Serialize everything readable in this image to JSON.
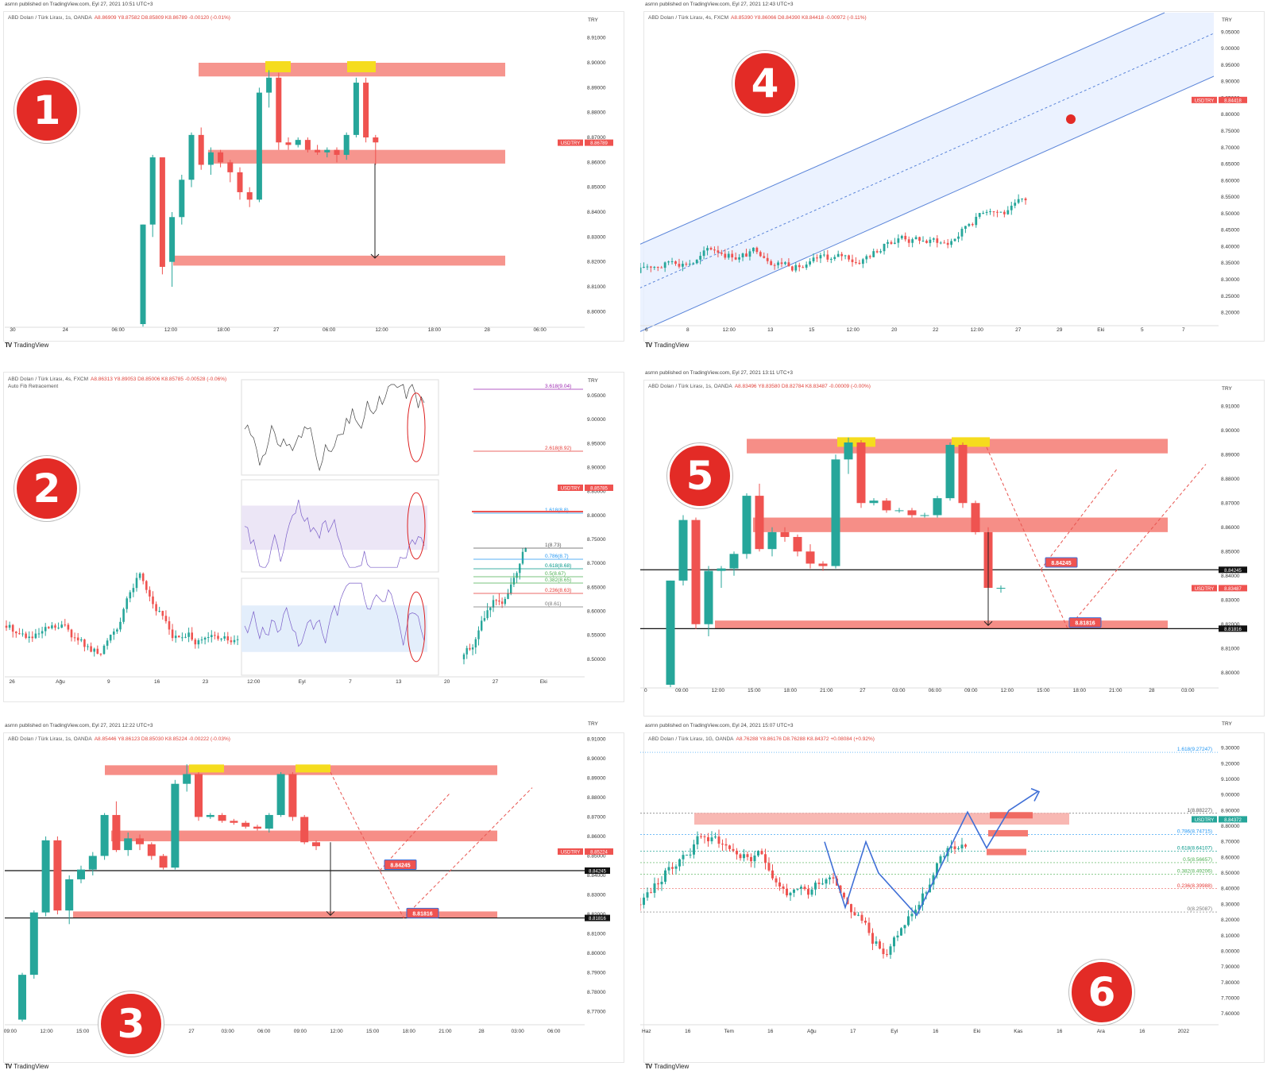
{
  "watermark": "TradingView",
  "panels": [
    {
      "number": "1",
      "published": "asrnn published on TradingView.com, Eyl 27, 2021 10:51 UTC+3",
      "symbol": "ABD Doları / Türk Lirası, 1s, OANDA",
      "ohlc": "A8.86909 Y8.87582 D8.85809 K8.86789 -0.00120 (-0.01%)",
      "currency": "TRY",
      "price_tag": {
        "symbol": "USDTRY",
        "value": "8.86789"
      }
    },
    {
      "number": "4",
      "published": "asrnn published on TradingView.com, Eyl 27, 2021 12:43 UTC+3",
      "symbol": "ABD Doları / Türk Lirası, 4s, FXCM",
      "ohlc": "A8.85390 Y8.86066 D8.84390 K8.84418 -0.00972 (-0.11%)",
      "currency": "TRY",
      "price_tag": {
        "symbol": "USDTRY",
        "value": "8.84418"
      }
    },
    {
      "number": "2",
      "published": "",
      "symbol": "ABD Doları / Türk Lirası, 4s, FXCM",
      "ohlc": "A8.86313 Y8.89053 D8.85006 K8.85785 -0.00528 (-0.06%)",
      "subtitle": "Auto Fib Retracement",
      "currency": "TRY",
      "price_tag": {
        "symbol": "USDTRY",
        "value": "8.85785"
      },
      "fib_levels": [
        "3.618(9.04)",
        "2.618(8.92)",
        "1.618(8.8)",
        "1(8.73)",
        "0.786(8.7)",
        "0.618(8.68)",
        "0.5(8.67)",
        "0.382(8.65)",
        "0.236(8.63)",
        "0(8.61)"
      ]
    },
    {
      "number": "5",
      "published": "asrnn published on TradingView.com, Eyl 27, 2021 13:11 UTC+3",
      "symbol": "ABD Doları / Türk Lirası, 1s, OANDA",
      "ohlc": "A8.83496 Y8.83580 D8.82784 K8.83487 -0.00009 (-0.00%)",
      "currency": "TRY",
      "price_tag": {
        "symbol": "USDTRY",
        "value": "8.83487"
      },
      "level_tags": [
        "8.84245",
        "8.81816"
      ]
    },
    {
      "number": "3",
      "published": "asrnn published on TradingView.com, Eyl 27, 2021 12:22 UTC+3",
      "symbol": "ABD Doları / Türk Lirası, 1s, OANDA",
      "ohlc": "A8.85446 Y8.86123 D8.85030 K8.85224 -0.00222 (-0.03%)",
      "currency": "TRY",
      "price_tag": {
        "symbol": "USDTRY",
        "value": "8.85224"
      },
      "level_tags": [
        "8.84245",
        "8.81816"
      ]
    },
    {
      "number": "6",
      "published": "asrnn published on TradingView.com, Eyl 24, 2021 15:07 UTC+3",
      "symbol": "ABD Doları / Türk Lirası, 1G, OANDA",
      "ohlc": "A8.76288 Y8.86176 D8.76288 K8.84372 +0.08084 (+0.92%)",
      "currency": "TRY",
      "price_tag": {
        "symbol": "USDTRY",
        "value": "8.84372"
      },
      "fib_levels": [
        "1.618(9.27247)",
        "1(8.88227)",
        "0.786(8.74715)",
        "0.618(8.64107)",
        "0.5(8.56657)",
        "0.382(8.49206)",
        "0.236(8.39988)",
        "0(8.25087)"
      ]
    }
  ],
  "chart_data": [
    {
      "type": "candlestick",
      "panel": "1",
      "x_ticks": [
        "30",
        "24",
        "06:00",
        "12:00",
        "18:00",
        "27",
        "06:00",
        "12:00",
        "18:00",
        "28",
        "06:00"
      ],
      "y_ticks": [
        "8.91000",
        "8.90000",
        "8.89000",
        "8.88000",
        "8.87000",
        "8.86000",
        "8.85000",
        "8.84000",
        "8.83000",
        "8.82000",
        "8.81000",
        "8.80000"
      ],
      "ylim": [
        8.795,
        8.915
      ],
      "zones": [
        [
          8.8945,
          8.9
        ],
        [
          8.8595,
          8.865
        ],
        [
          8.8185,
          8.8225
        ]
      ],
      "ohlc": [
        [
          8.795,
          8.835,
          8.794,
          8.835
        ],
        [
          8.835,
          8.863,
          8.83,
          8.862
        ],
        [
          8.862,
          8.861,
          8.815,
          8.818
        ],
        [
          8.82,
          8.84,
          8.81,
          8.838
        ],
        [
          8.838,
          8.855,
          8.835,
          8.853
        ],
        [
          8.853,
          8.872,
          8.85,
          8.871
        ],
        [
          8.871,
          8.874,
          8.857,
          8.859
        ],
        [
          8.859,
          8.866,
          8.855,
          8.864
        ],
        [
          8.864,
          8.865,
          8.858,
          8.86
        ],
        [
          8.86,
          8.861,
          8.852,
          8.856
        ],
        [
          8.856,
          8.858,
          8.845,
          8.848
        ],
        [
          8.848,
          8.85,
          8.842,
          8.845
        ],
        [
          8.845,
          8.89,
          8.844,
          8.888
        ],
        [
          8.888,
          8.897,
          8.882,
          8.894
        ],
        [
          8.894,
          8.896,
          8.865,
          8.868
        ],
        [
          8.868,
          8.87,
          8.865,
          8.867
        ],
        [
          8.867,
          8.87,
          8.866,
          8.869
        ],
        [
          8.869,
          8.87,
          8.864,
          8.865
        ],
        [
          8.865,
          8.867,
          8.863,
          8.864
        ],
        [
          8.864,
          8.866,
          8.862,
          8.865
        ],
        [
          8.865,
          8.866,
          8.86,
          8.863
        ],
        [
          8.863,
          8.872,
          8.861,
          8.871
        ],
        [
          8.871,
          8.894,
          8.87,
          8.892
        ],
        [
          8.892,
          8.894,
          8.868,
          8.87
        ],
        [
          8.87,
          8.871,
          8.859,
          8.868
        ]
      ]
    },
    {
      "type": "candlestick",
      "panel": "4",
      "x_ticks": [
        "6",
        "8",
        "12:00",
        "13",
        "15",
        "12:00",
        "20",
        "22",
        "12:00",
        "27",
        "29",
        "Eki",
        "5",
        "7"
      ],
      "y_ticks": [
        "9.05000",
        "9.00000",
        "8.95000",
        "8.90000",
        "8.85000",
        "8.80000",
        "8.75000",
        "8.70000",
        "8.65000",
        "8.60000",
        "8.55000",
        "8.50000",
        "8.45000",
        "8.40000",
        "8.35000",
        "8.30000",
        "8.25000",
        "8.20000"
      ],
      "ylim": [
        8.17,
        9.07
      ]
    },
    {
      "type": "candlestick",
      "panel": "2",
      "x_ticks": [
        "26",
        "Ağu",
        "9",
        "16",
        "23",
        "12:00",
        "Eyl",
        "7",
        "13",
        "20",
        "27",
        "Eki"
      ],
      "y_ticks": [
        "9.05000",
        "9.00000",
        "8.95000",
        "8.90000",
        "8.85000",
        "8.80000",
        "8.75000",
        "8.70000",
        "8.65000",
        "8.60000",
        "8.55000",
        "8.50000"
      ],
      "ylim": [
        8.47,
        9.07
      ]
    },
    {
      "type": "candlestick",
      "panel": "5",
      "x_ticks": [
        "0",
        "09:00",
        "12:00",
        "15:00",
        "18:00",
        "21:00",
        "27",
        "03:00",
        "06:00",
        "09:00",
        "12:00",
        "15:00",
        "18:00",
        "21:00",
        "28",
        "03:00"
      ],
      "y_ticks": [
        "8.91000",
        "8.90000",
        "8.89000",
        "8.88000",
        "8.87000",
        "8.86000",
        "8.85000",
        "8.84000",
        "8.83000",
        "8.82000",
        "8.81000",
        "8.80000"
      ],
      "ylim": [
        8.795,
        8.915
      ],
      "levels": [
        8.84245,
        8.81816
      ],
      "ohlc": [
        [
          8.795,
          8.838,
          8.794,
          8.838
        ],
        [
          8.838,
          8.865,
          8.836,
          8.863
        ],
        [
          8.863,
          8.864,
          8.818,
          8.82
        ],
        [
          8.82,
          8.844,
          8.815,
          8.842
        ],
        [
          8.842,
          8.844,
          8.835,
          8.843
        ],
        [
          8.843,
          8.85,
          8.84,
          8.849
        ],
        [
          8.849,
          8.874,
          8.847,
          8.873
        ],
        [
          8.873,
          8.878,
          8.85,
          8.851
        ],
        [
          8.851,
          8.86,
          8.848,
          8.858
        ],
        [
          8.858,
          8.86,
          8.854,
          8.856
        ],
        [
          8.856,
          8.857,
          8.848,
          8.85
        ],
        [
          8.85,
          8.853,
          8.843,
          8.845
        ],
        [
          8.845,
          8.846,
          8.842,
          8.844
        ],
        [
          8.844,
          8.89,
          8.843,
          8.888
        ],
        [
          8.888,
          8.897,
          8.882,
          8.895
        ],
        [
          8.895,
          8.896,
          8.868,
          8.87
        ],
        [
          8.87,
          8.872,
          8.869,
          8.871
        ],
        [
          8.871,
          8.872,
          8.866,
          8.867
        ],
        [
          8.867,
          8.868,
          8.866,
          8.867
        ],
        [
          8.867,
          8.868,
          8.864,
          8.865
        ],
        [
          8.865,
          8.866,
          8.864,
          8.865
        ],
        [
          8.865,
          8.873,
          8.864,
          8.872
        ],
        [
          8.872,
          8.895,
          8.871,
          8.894
        ],
        [
          8.894,
          8.895,
          8.868,
          8.87
        ],
        [
          8.87,
          8.871,
          8.857,
          8.858
        ],
        [
          8.858,
          8.86,
          8.83,
          8.835
        ],
        [
          8.835,
          8.836,
          8.833,
          8.835
        ]
      ]
    },
    {
      "type": "candlestick",
      "panel": "3",
      "x_ticks": [
        "09:00",
        "12:00",
        "15:00",
        "18:00",
        "21:00",
        "27",
        "03:00",
        "06:00",
        "09:00",
        "12:00",
        "15:00",
        "18:00",
        "21:00",
        "28",
        "03:00",
        "06:00"
      ],
      "y_ticks": [
        "8.91000",
        "8.90000",
        "8.89000",
        "8.88000",
        "8.87000",
        "8.86000",
        "8.85000",
        "8.84000",
        "8.83000",
        "8.82000",
        "8.81000",
        "8.80000",
        "8.79000",
        "8.78000",
        "8.77000"
      ],
      "ylim": [
        8.765,
        8.915
      ],
      "levels": [
        8.84245,
        8.81816
      ],
      "ohlc": [
        [
          8.766,
          8.79,
          8.765,
          8.789
        ],
        [
          8.789,
          8.822,
          8.787,
          8.821
        ],
        [
          8.821,
          8.86,
          8.819,
          8.858
        ],
        [
          8.858,
          8.86,
          8.82,
          8.822
        ],
        [
          8.822,
          8.84,
          8.815,
          8.838
        ],
        [
          8.838,
          8.845,
          8.836,
          8.843
        ],
        [
          8.843,
          8.852,
          8.84,
          8.85
        ],
        [
          8.85,
          8.872,
          8.848,
          8.871
        ],
        [
          8.871,
          8.878,
          8.852,
          8.853
        ],
        [
          8.853,
          8.862,
          8.85,
          8.859
        ],
        [
          8.859,
          8.861,
          8.853,
          8.856
        ],
        [
          8.856,
          8.857,
          8.848,
          8.85
        ],
        [
          8.85,
          8.851,
          8.843,
          8.844
        ],
        [
          8.844,
          8.889,
          8.843,
          8.887
        ],
        [
          8.887,
          8.897,
          8.883,
          8.892
        ],
        [
          8.892,
          8.893,
          8.868,
          8.87
        ],
        [
          8.87,
          8.872,
          8.869,
          8.871
        ],
        [
          8.871,
          8.872,
          8.867,
          8.868
        ],
        [
          8.868,
          8.869,
          8.866,
          8.867
        ],
        [
          8.867,
          8.868,
          8.864,
          8.865
        ],
        [
          8.865,
          8.866,
          8.863,
          8.864
        ],
        [
          8.864,
          8.872,
          8.862,
          8.871
        ],
        [
          8.871,
          8.893,
          8.87,
          8.892
        ],
        [
          8.892,
          8.893,
          8.868,
          8.87
        ],
        [
          8.87,
          8.871,
          8.856,
          8.857
        ],
        [
          8.857,
          8.858,
          8.853,
          8.855
        ]
      ]
    },
    {
      "type": "candlestick",
      "panel": "6",
      "x_ticks": [
        "Haz",
        "16",
        "Tem",
        "16",
        "Ağu",
        "17",
        "Eyl",
        "16",
        "Eki",
        "Kas",
        "16",
        "Ara",
        "16",
        "2022"
      ],
      "y_ticks": [
        "9.30000",
        "9.20000",
        "9.10000",
        "9.00000",
        "8.90000",
        "8.80000",
        "8.70000",
        "8.60000",
        "8.50000",
        "8.40000",
        "8.30000",
        "8.20000",
        "8.10000",
        "8.00000",
        "7.90000",
        "7.80000",
        "7.70000",
        "7.60000"
      ],
      "ylim": [
        7.55,
        9.42
      ]
    }
  ]
}
